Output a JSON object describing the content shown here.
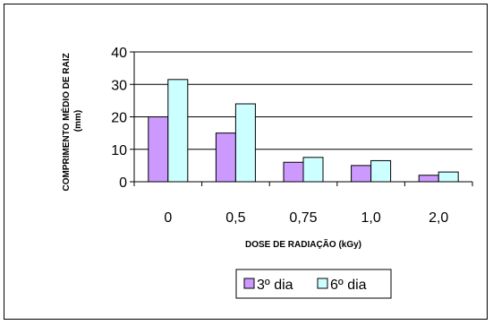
{
  "chart_data": {
    "type": "bar",
    "xlabel": "DOSE DE RADIAÇÃO (kGy)",
    "ylabel_lines": [
      "COMPRIMENTO MÉDIO DE RAIZ",
      "(mm)"
    ],
    "categories": [
      "0",
      "0,5",
      "0,75",
      "1,0",
      "2,0"
    ],
    "ylim": [
      0,
      40
    ],
    "yticks": [
      0,
      10,
      20,
      30,
      40
    ],
    "grid": true,
    "legend_position": "bottom",
    "series": [
      {
        "name": "3º dia",
        "values": [
          20,
          15,
          6,
          5,
          2
        ],
        "color": "#CC99FF"
      },
      {
        "name": "6º dia",
        "values": [
          31.5,
          24,
          7.5,
          6.5,
          3
        ],
        "color": "#CCFFFF"
      }
    ]
  }
}
